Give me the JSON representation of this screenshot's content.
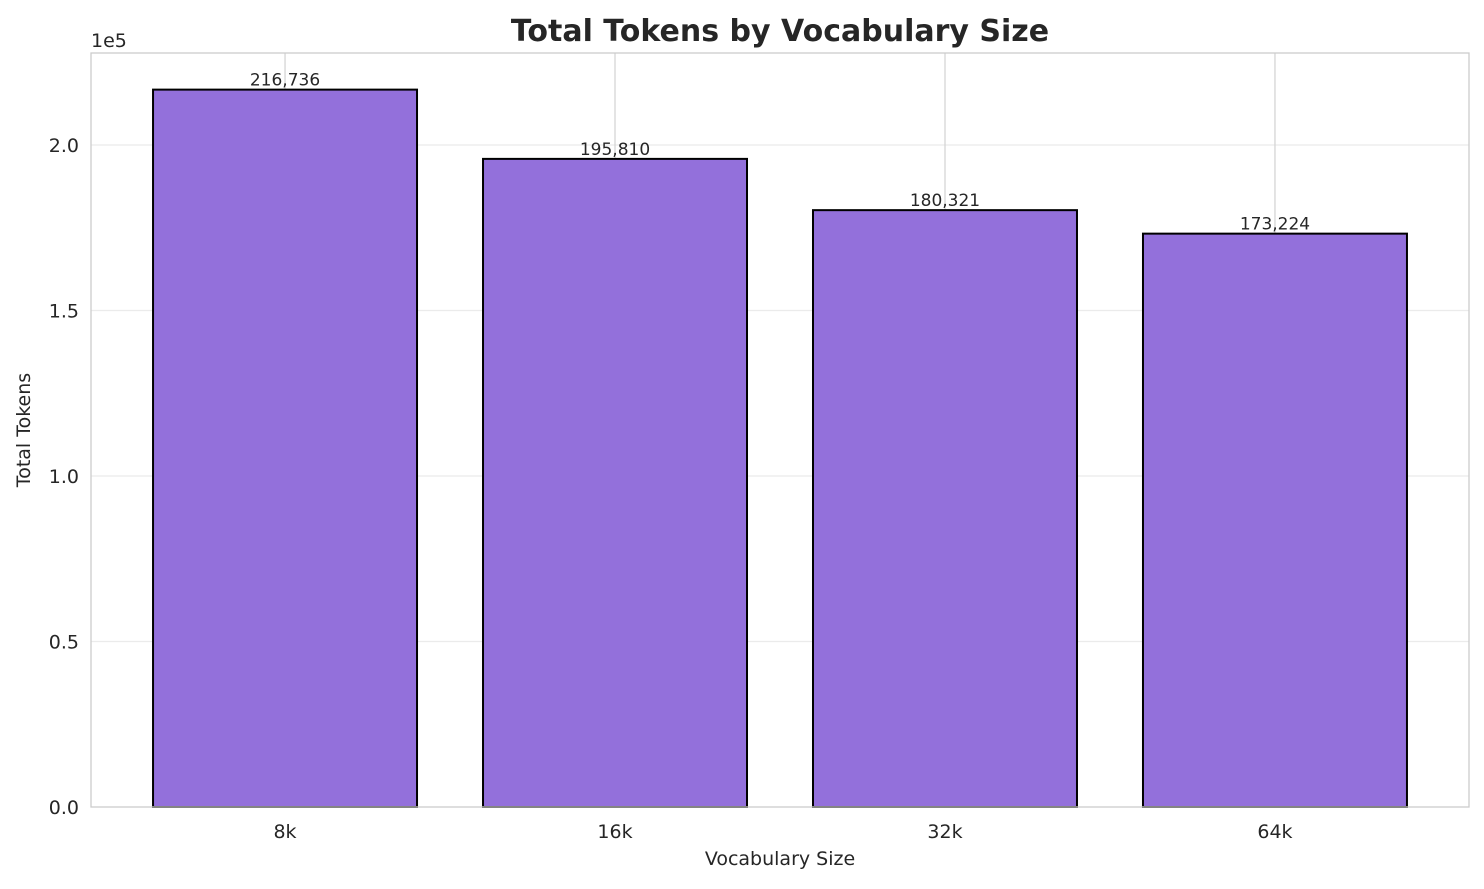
{
  "chart_data": {
    "type": "bar",
    "title": "Total Tokens by Vocabulary Size",
    "xlabel": "Vocabulary Size",
    "ylabel": "Total Tokens",
    "y_offset_label": "1e5",
    "categories": [
      "8k",
      "16k",
      "32k",
      "64k"
    ],
    "values": [
      216736,
      195810,
      180321,
      173224
    ],
    "data_labels": [
      "216,736",
      "195,810",
      "180,321",
      "173,224"
    ],
    "yticks": [
      0,
      50000,
      100000,
      150000,
      200000
    ],
    "ytick_labels": [
      "0.0",
      "0.5",
      "1.0",
      "1.5",
      "2.0"
    ],
    "ylim": [
      0,
      227800
    ],
    "grid": true,
    "bar_color": "#9370DB",
    "bar_edge_color": "#000000"
  }
}
